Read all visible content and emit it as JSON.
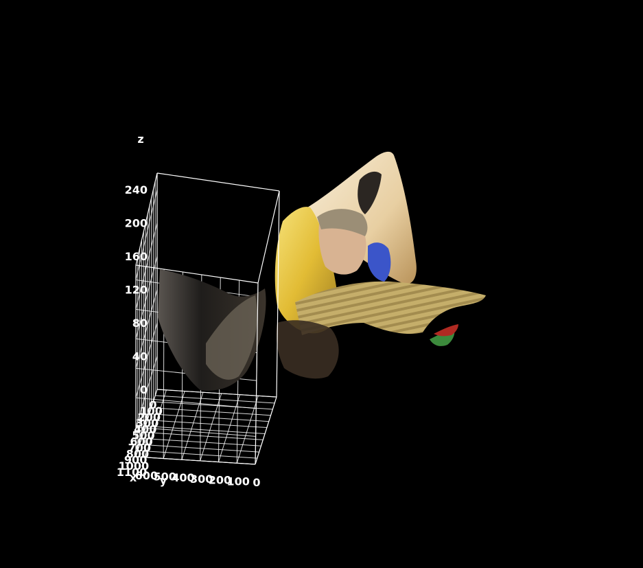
{
  "chart_data": {
    "type": "surface3d",
    "title": "",
    "xlabel": "x",
    "ylabel": "y",
    "zlabel": "z",
    "x_ticks": [
      "0",
      "100",
      "200",
      "300",
      "400",
      "500",
      "600",
      "700",
      "800",
      "900",
      "1000",
      "1100"
    ],
    "y_ticks": [
      "0",
      "100",
      "200",
      "300",
      "400",
      "500",
      "600"
    ],
    "z_ticks": [
      "0",
      "40",
      "80",
      "120",
      "160",
      "200",
      "240"
    ],
    "xlim": [
      0,
      1100
    ],
    "ylim": [
      0,
      650
    ],
    "zlim": [
      0,
      260
    ],
    "grid": true,
    "background": "#000000",
    "grid_color": "#ffffff",
    "surface_colors": [
      "#e8c33a",
      "#f2dfb4",
      "#c9b27a",
      "#2a2a2a",
      "#8a7a66",
      "#d9a84a"
    ]
  }
}
